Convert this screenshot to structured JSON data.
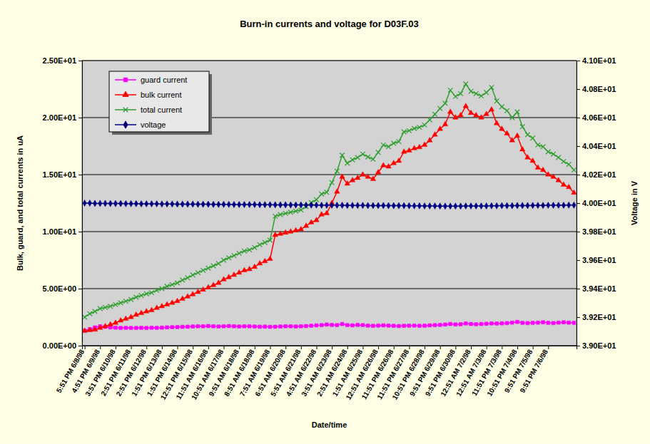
{
  "chart_data": {
    "type": "line",
    "title": "Burn-in currents and voltage for D03F.03",
    "x_label": "Date/time",
    "y_label": "Bulk, guard, and total currents in uA",
    "y2_label": "Voltage in V",
    "categories": [
      "5:51 PM 6/8/98",
      null,
      null,
      "4:51 PM 6/9/98",
      null,
      null,
      "3:51 PM 6/10/98",
      null,
      null,
      "2:51 PM 6/11/98",
      null,
      null,
      "2:51 PM 6/12/98",
      null,
      null,
      "1:51 PM 6/13/98",
      null,
      null,
      "1:51 PM 6/14/98",
      null,
      null,
      "12:51 PM 6/15/98",
      null,
      null,
      "11:51 AM 6/16/98",
      null,
      null,
      "10:51 AM 6/17/98",
      null,
      null,
      "9:51 AM 6/18/98",
      null,
      null,
      "8:51 AM 6/18/98",
      null,
      null,
      "7:51 AM 6/19/98",
      null,
      null,
      "6:51 AM 6/20/98",
      null,
      null,
      "5:51 AM 6/21/98",
      null,
      null,
      "4:51 AM 6/22/98",
      null,
      null,
      "3:51 AM 6/23/98",
      null,
      null,
      "2:51 AM 6/24/98",
      null,
      null,
      "1:51 AM 6/25/98",
      null,
      null,
      "12:51 AM 6/26/98",
      null,
      null,
      "11:51 PM 6/26/98",
      null,
      null,
      "11:51 PM 6/27/98",
      null,
      null,
      "10:51 PM 6/28/98",
      null,
      null,
      "9:51 PM 6/29/98",
      null,
      null,
      "9:51 PM 6/30/98",
      null,
      null,
      "12:51 AM 7/2/98",
      null,
      null,
      "12:51 AM 7/3/98",
      null,
      null,
      "11:51 PM 7/3/98",
      null,
      null,
      "10:51 PM 7/4/98",
      null,
      null,
      "9:51 PM 7/5/98",
      null,
      null,
      "9:51 PM 7/6/98",
      null,
      null,
      null,
      null,
      null
    ],
    "series": [
      {
        "name": "guard current",
        "color": "#ff00ff",
        "marker": "square",
        "values": [
          1.3,
          1.45,
          1.6,
          1.7,
          1.65,
          1.6,
          1.58,
          1.55,
          1.56,
          1.55,
          1.55,
          1.56,
          1.55,
          1.57,
          1.56,
          1.58,
          1.6,
          1.62,
          1.63,
          1.65,
          1.66,
          1.68,
          1.7,
          1.7,
          1.72,
          1.7,
          1.68,
          1.7,
          1.72,
          1.7,
          1.68,
          1.7,
          1.7,
          1.68,
          1.66,
          1.67,
          1.65,
          1.66,
          1.68,
          1.7,
          1.7,
          1.68,
          1.7,
          1.72,
          1.75,
          1.78,
          1.8,
          1.85,
          1.82,
          1.8,
          1.9,
          1.8,
          1.78,
          1.82,
          1.8,
          1.76,
          1.74,
          1.76,
          1.78,
          1.76,
          1.74,
          1.72,
          1.74,
          1.75,
          1.76,
          1.74,
          1.75,
          1.78,
          1.8,
          1.82,
          1.85,
          1.9,
          1.86,
          1.88,
          1.95,
          1.9,
          1.88,
          1.9,
          1.92,
          1.95,
          1.94,
          1.96,
          1.98,
          2.02,
          2.08,
          2.0,
          1.98,
          2.0,
          2.02,
          2.05,
          2.0,
          1.98,
          2.02,
          2.05,
          2.02,
          2.0
        ]
      },
      {
        "name": "bulk current",
        "color": "#ff0000",
        "marker": "triangle",
        "values": [
          1.3,
          1.35,
          1.4,
          1.55,
          1.7,
          1.85,
          2.0,
          2.2,
          2.35,
          2.5,
          2.7,
          2.85,
          3.0,
          3.1,
          3.3,
          3.45,
          3.6,
          3.75,
          3.9,
          4.1,
          4.3,
          4.5,
          4.7,
          4.9,
          5.1,
          5.3,
          5.5,
          5.8,
          6.0,
          6.2,
          6.4,
          6.6,
          6.7,
          6.9,
          7.2,
          7.4,
          7.6,
          9.7,
          9.8,
          9.9,
          10.0,
          10.1,
          10.2,
          10.5,
          10.8,
          11.0,
          11.5,
          11.6,
          12.5,
          13.5,
          14.8,
          14.2,
          14.5,
          14.7,
          15.0,
          14.8,
          14.6,
          15.2,
          15.8,
          15.7,
          16.0,
          16.2,
          17.0,
          17.1,
          17.3,
          17.4,
          17.6,
          18.0,
          18.5,
          19.0,
          19.4,
          20.5,
          20.0,
          20.2,
          21.0,
          20.4,
          20.2,
          20.0,
          20.3,
          20.7,
          19.5,
          19.0,
          18.6,
          18.0,
          18.4,
          17.2,
          16.5,
          16.2,
          15.6,
          15.4,
          15.0,
          14.8,
          14.5,
          14.1,
          13.9,
          13.4
        ]
      },
      {
        "name": "total current",
        "color": "#2e9e2e",
        "marker": "x",
        "values": [
          2.5,
          2.8,
          3.0,
          3.25,
          3.35,
          3.45,
          3.6,
          3.75,
          3.9,
          4.05,
          4.25,
          4.4,
          4.55,
          4.65,
          4.85,
          5.0,
          5.2,
          5.35,
          5.5,
          5.75,
          5.95,
          6.2,
          6.4,
          6.6,
          6.8,
          7.0,
          7.2,
          7.5,
          7.7,
          7.9,
          8.1,
          8.3,
          8.4,
          8.6,
          8.85,
          9.05,
          9.25,
          11.35,
          11.5,
          11.6,
          11.7,
          11.8,
          11.9,
          12.2,
          12.55,
          12.8,
          13.3,
          13.45,
          14.3,
          15.3,
          16.7,
          16.0,
          16.3,
          16.5,
          16.8,
          16.55,
          16.35,
          16.95,
          17.6,
          17.45,
          17.75,
          17.9,
          18.75,
          18.85,
          19.05,
          19.15,
          19.35,
          19.8,
          20.3,
          20.8,
          21.25,
          22.4,
          21.85,
          22.1,
          22.95,
          22.3,
          22.1,
          21.9,
          22.2,
          22.65,
          21.45,
          20.95,
          20.6,
          20.0,
          20.5,
          19.2,
          18.5,
          18.2,
          17.6,
          17.45,
          17.0,
          16.8,
          16.5,
          16.15,
          15.9,
          15.4
        ]
      },
      {
        "name": "voltage",
        "color": "#000080",
        "marker": "diamond",
        "axis": "y2",
        "values": [
          40.0,
          40.0,
          39.998,
          39.998,
          39.998,
          39.997,
          39.997,
          39.997,
          39.996,
          39.996,
          39.996,
          39.995,
          39.995,
          39.995,
          39.995,
          39.994,
          39.994,
          39.994,
          39.993,
          39.993,
          39.993,
          39.993,
          39.992,
          39.992,
          39.992,
          39.991,
          39.991,
          39.991,
          39.991,
          39.99,
          39.99,
          39.99,
          39.99,
          39.99,
          39.989,
          39.989,
          39.989,
          39.988,
          39.988,
          39.988,
          39.987,
          39.987,
          39.987,
          39.986,
          39.986,
          39.986,
          39.985,
          39.985,
          39.985,
          39.985,
          39.985,
          39.984,
          39.984,
          39.984,
          39.984,
          39.983,
          39.983,
          39.983,
          39.983,
          39.982,
          39.982,
          39.982,
          39.982,
          39.981,
          39.981,
          39.981,
          39.98,
          39.98,
          39.98,
          39.979,
          39.979,
          39.979,
          39.979,
          39.979,
          39.98,
          39.98,
          39.98,
          39.98,
          39.98,
          39.981,
          39.981,
          39.982,
          39.982,
          39.982,
          39.983,
          39.983,
          39.983,
          39.984,
          39.984,
          39.984,
          39.985,
          39.985,
          39.985,
          39.985,
          39.986,
          39.986
        ]
      }
    ],
    "ylim": [
      0,
      25
    ],
    "yticks": [
      {
        "value": 0,
        "label": "0.00E+00"
      },
      {
        "value": 5,
        "label": "5.00E+00"
      },
      {
        "value": 10,
        "label": "1.00E+01"
      },
      {
        "value": 15,
        "label": "1.50E+01"
      },
      {
        "value": 20,
        "label": "2.00E+01"
      },
      {
        "value": 25,
        "label": "2.50E+01"
      }
    ],
    "y2lim": [
      39,
      41
    ],
    "y2ticks": [
      {
        "value": 39,
        "label": "3.90E+01"
      },
      {
        "value": 39.2,
        "label": "3.92E+01"
      },
      {
        "value": 39.4,
        "label": "3.94E+01"
      },
      {
        "value": 39.6,
        "label": "3.96E+01"
      },
      {
        "value": 39.8,
        "label": "3.98E+01"
      },
      {
        "value": 40,
        "label": "4.00E+01"
      },
      {
        "value": 40.2,
        "label": "4.02E+01"
      },
      {
        "value": 40.4,
        "label": "4.04E+01"
      },
      {
        "value": 40.6,
        "label": "4.06E+01"
      },
      {
        "value": 40.8,
        "label": "4.08E+01"
      },
      {
        "value": 41,
        "label": "4.10E+01"
      }
    ],
    "grid": true,
    "legend": "top-left"
  }
}
